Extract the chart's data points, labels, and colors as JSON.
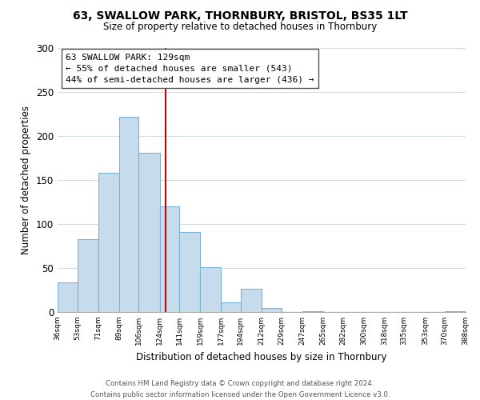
{
  "title": "63, SWALLOW PARK, THORNBURY, BRISTOL, BS35 1LT",
  "subtitle": "Size of property relative to detached houses in Thornbury",
  "xlabel": "Distribution of detached houses by size in Thornbury",
  "ylabel": "Number of detached properties",
  "bar_color": "#c6dcec",
  "bar_edge_color": "#7ab3d3",
  "background_color": "#ffffff",
  "grid_color": "#d0dce8",
  "vline_x": 129,
  "vline_color": "#cc0000",
  "bin_edges": [
    36,
    53,
    71,
    89,
    106,
    124,
    141,
    159,
    177,
    194,
    212,
    229,
    247,
    265,
    282,
    300,
    318,
    335,
    353,
    370,
    388
  ],
  "bin_counts": [
    34,
    83,
    158,
    222,
    181,
    120,
    91,
    51,
    11,
    26,
    5,
    0,
    1,
    0,
    0,
    0,
    0,
    0,
    0,
    1
  ],
  "tick_labels": [
    "36sqm",
    "53sqm",
    "71sqm",
    "89sqm",
    "106sqm",
    "124sqm",
    "141sqm",
    "159sqm",
    "177sqm",
    "194sqm",
    "212sqm",
    "229sqm",
    "247sqm",
    "265sqm",
    "282sqm",
    "300sqm",
    "318sqm",
    "335sqm",
    "353sqm",
    "370sqm",
    "388sqm"
  ],
  "annotation_title": "63 SWALLOW PARK: 129sqm",
  "annotation_line1": "← 55% of detached houses are smaller (543)",
  "annotation_line2": "44% of semi-detached houses are larger (436) →",
  "annotation_box_color": "#ffffff",
  "annotation_box_edge": "#555555",
  "footer1": "Contains HM Land Registry data © Crown copyright and database right 2024.",
  "footer2": "Contains public sector information licensed under the Open Government Licence v3.0.",
  "ylim": [
    0,
    300
  ],
  "yticks": [
    0,
    50,
    100,
    150,
    200,
    250,
    300
  ]
}
